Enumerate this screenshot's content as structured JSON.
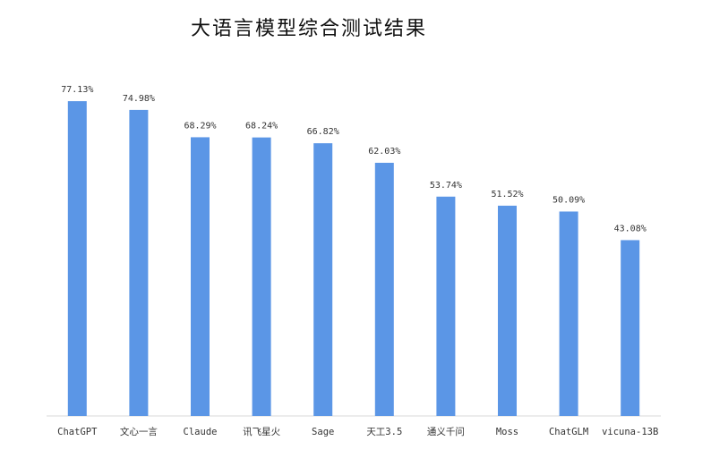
{
  "chart_data": {
    "type": "bar",
    "title": "大语言模型综合测试结果",
    "categories": [
      "ChatGPT",
      "文心一言",
      "Claude",
      "讯飞星火",
      "Sage",
      "天工3.5",
      "通义千问",
      "Moss",
      "ChatGLM",
      "vicuna-13B"
    ],
    "values": [
      77.13,
      74.98,
      68.29,
      68.24,
      66.82,
      62.03,
      53.74,
      51.52,
      50.09,
      43.08
    ],
    "data_labels": [
      "77.13%",
      "74.98%",
      "68.29%",
      "68.24%",
      "66.82%",
      "62.03%",
      "53.74%",
      "51.52%",
      "50.09%",
      "43.08%"
    ],
    "ylim": [
      0,
      80
    ],
    "grid": false,
    "bar_color": "#5b96e6",
    "axis_color": "#d9d9d9"
  }
}
